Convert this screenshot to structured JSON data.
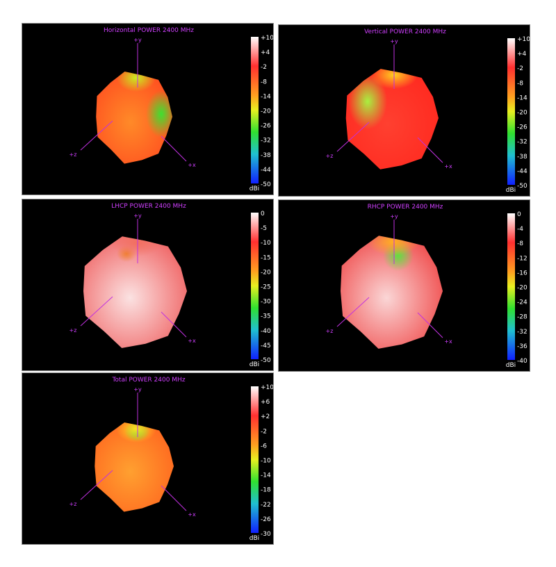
{
  "panels": [
    {
      "title": "Horizontal POWER 2400  MHz",
      "axes": {
        "y": "+y",
        "z": "+z",
        "x": "+x"
      },
      "scale": [
        "+10",
        "+4",
        "-2",
        "-8",
        "-14",
        "-20",
        "-26",
        "-32",
        "-38",
        "-44",
        "-50"
      ],
      "unit": "dBi"
    },
    {
      "title": "Vertical POWER 2400  MHz",
      "axes": {
        "y": "+y",
        "z": "+z",
        "x": "+x"
      },
      "scale": [
        "+10",
        "+4",
        "-2",
        "-8",
        "-14",
        "-20",
        "-26",
        "-32",
        "-38",
        "-44",
        "-50"
      ],
      "unit": "dBi"
    },
    {
      "title": "LHCP POWER 2400  MHz",
      "axes": {
        "y": "+y",
        "z": "+z",
        "x": "+x"
      },
      "scale": [
        "0",
        "-5",
        "-10",
        "-15",
        "-20",
        "-25",
        "-30",
        "-35",
        "-40",
        "-45",
        "-50"
      ],
      "unit": "dBi"
    },
    {
      "title": "RHCP POWER 2400  MHz",
      "axes": {
        "y": "+y",
        "z": "+z",
        "x": "+x"
      },
      "scale": [
        "0",
        "-4",
        "-8",
        "-12",
        "-16",
        "-20",
        "-24",
        "-28",
        "-32",
        "-36",
        "-40"
      ],
      "unit": "dBi"
    },
    {
      "title": "Total POWER 2400  MHz",
      "axes": {
        "y": "+y",
        "z": "+z",
        "x": "+x"
      },
      "scale": [
        "+10",
        "+6",
        "+2",
        "-2",
        "-6",
        "-10",
        "-14",
        "-18",
        "-22",
        "-26",
        "-30"
      ],
      "unit": "dBi"
    }
  ]
}
